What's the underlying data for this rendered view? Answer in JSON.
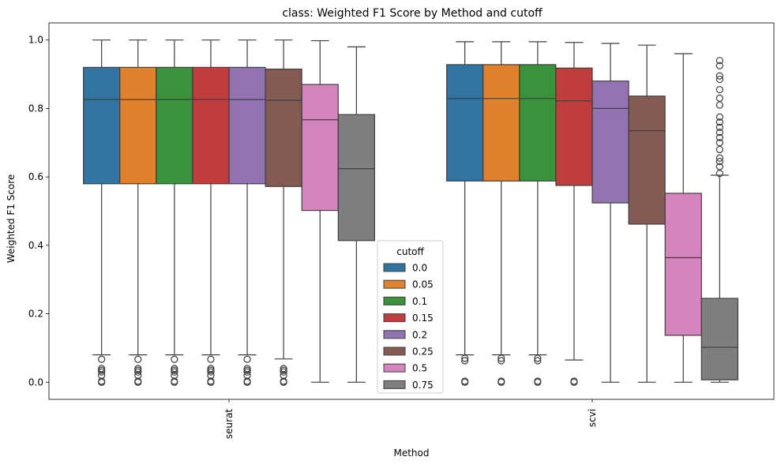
{
  "chart_data": {
    "type": "box",
    "title": "class: Weighted F1 Score by Method and cutoff",
    "xlabel": "Method",
    "ylabel": "Weighted F1 Score",
    "ylim": [
      -0.05,
      1.05
    ],
    "yticks": [
      0.0,
      0.2,
      0.4,
      0.6,
      0.8,
      1.0
    ],
    "ytick_labels": [
      "0.0",
      "0.2",
      "0.4",
      "0.6",
      "0.8",
      "1.0"
    ],
    "categories": [
      "seurat",
      "scvi"
    ],
    "legend": {
      "title": "cutoff",
      "placement": "center-bottom"
    },
    "series": [
      {
        "name": "0.0",
        "color": "#3274a1",
        "boxes": [
          {
            "category": "seurat",
            "whisker_low": 0.08,
            "q1": 0.58,
            "median": 0.826,
            "q3": 0.92,
            "whisker_high": 1.0,
            "outliers": [
              0.067,
              0.04,
              0.035,
              0.03,
              0.02,
              0.003,
              0.0
            ]
          },
          {
            "category": "scvi",
            "whisker_low": 0.08,
            "q1": 0.588,
            "median": 0.829,
            "q3": 0.928,
            "whisker_high": 0.995,
            "outliers": [
              0.07,
              0.063,
              0.003,
              0.0
            ]
          }
        ]
      },
      {
        "name": "0.05",
        "color": "#e1812c",
        "boxes": [
          {
            "category": "seurat",
            "whisker_low": 0.08,
            "q1": 0.58,
            "median": 0.826,
            "q3": 0.92,
            "whisker_high": 1.0,
            "outliers": [
              0.067,
              0.04,
              0.035,
              0.03,
              0.02,
              0.003,
              0.0
            ]
          },
          {
            "category": "scvi",
            "whisker_low": 0.08,
            "q1": 0.588,
            "median": 0.829,
            "q3": 0.928,
            "whisker_high": 0.995,
            "outliers": [
              0.07,
              0.063,
              0.003,
              0.0
            ]
          }
        ]
      },
      {
        "name": "0.1",
        "color": "#3a923a",
        "boxes": [
          {
            "category": "seurat",
            "whisker_low": 0.08,
            "q1": 0.58,
            "median": 0.826,
            "q3": 0.92,
            "whisker_high": 1.0,
            "outliers": [
              0.067,
              0.04,
              0.035,
              0.03,
              0.02,
              0.003,
              0.0
            ]
          },
          {
            "category": "scvi",
            "whisker_low": 0.08,
            "q1": 0.588,
            "median": 0.829,
            "q3": 0.928,
            "whisker_high": 0.995,
            "outliers": [
              0.07,
              0.063,
              0.003,
              0.0
            ]
          }
        ]
      },
      {
        "name": "0.15",
        "color": "#c03d3e",
        "boxes": [
          {
            "category": "seurat",
            "whisker_low": 0.08,
            "q1": 0.58,
            "median": 0.826,
            "q3": 0.92,
            "whisker_high": 1.0,
            "outliers": [
              0.067,
              0.04,
              0.035,
              0.03,
              0.02,
              0.003,
              0.0
            ]
          },
          {
            "category": "scvi",
            "whisker_low": 0.065,
            "q1": 0.575,
            "median": 0.822,
            "q3": 0.918,
            "whisker_high": 0.993,
            "outliers": [
              0.003,
              0.0
            ]
          }
        ]
      },
      {
        "name": "0.2",
        "color": "#9372b2",
        "boxes": [
          {
            "category": "seurat",
            "whisker_low": 0.08,
            "q1": 0.58,
            "median": 0.826,
            "q3": 0.92,
            "whisker_high": 1.0,
            "outliers": [
              0.067,
              0.04,
              0.035,
              0.03,
              0.02,
              0.003,
              0.0
            ]
          },
          {
            "category": "scvi",
            "whisker_low": 0.0,
            "q1": 0.524,
            "median": 0.8,
            "q3": 0.88,
            "whisker_high": 0.99,
            "outliers": []
          }
        ]
      },
      {
        "name": "0.25",
        "color": "#845b53",
        "boxes": [
          {
            "category": "seurat",
            "whisker_low": 0.068,
            "q1": 0.572,
            "median": 0.824,
            "q3": 0.915,
            "whisker_high": 1.0,
            "outliers": [
              0.04,
              0.035,
              0.03,
              0.02,
              0.003,
              0.0
            ]
          },
          {
            "category": "scvi",
            "whisker_low": 0.0,
            "q1": 0.462,
            "median": 0.735,
            "q3": 0.836,
            "whisker_high": 0.985,
            "outliers": []
          }
        ]
      },
      {
        "name": "0.5",
        "color": "#d684bd",
        "boxes": [
          {
            "category": "seurat",
            "whisker_low": 0.0,
            "q1": 0.502,
            "median": 0.767,
            "q3": 0.87,
            "whisker_high": 0.998,
            "outliers": []
          },
          {
            "category": "scvi",
            "whisker_low": 0.0,
            "q1": 0.137,
            "median": 0.364,
            "q3": 0.552,
            "whisker_high": 0.96,
            "outliers": []
          }
        ]
      },
      {
        "name": "0.75",
        "color": "#7f7f7f",
        "boxes": [
          {
            "category": "seurat",
            "whisker_low": 0.0,
            "q1": 0.414,
            "median": 0.624,
            "q3": 0.782,
            "whisker_high": 0.98,
            "outliers": []
          },
          {
            "category": "scvi",
            "whisker_low": 0.0,
            "q1": 0.007,
            "median": 0.102,
            "q3": 0.245,
            "whisker_high": 0.605,
            "outliers": [
              0.61,
              0.63,
              0.645,
              0.655,
              0.68,
              0.7,
              0.715,
              0.73,
              0.745,
              0.76,
              0.775,
              0.81,
              0.83,
              0.855,
              0.885,
              0.895,
              0.925,
              0.94
            ]
          }
        ]
      }
    ]
  }
}
